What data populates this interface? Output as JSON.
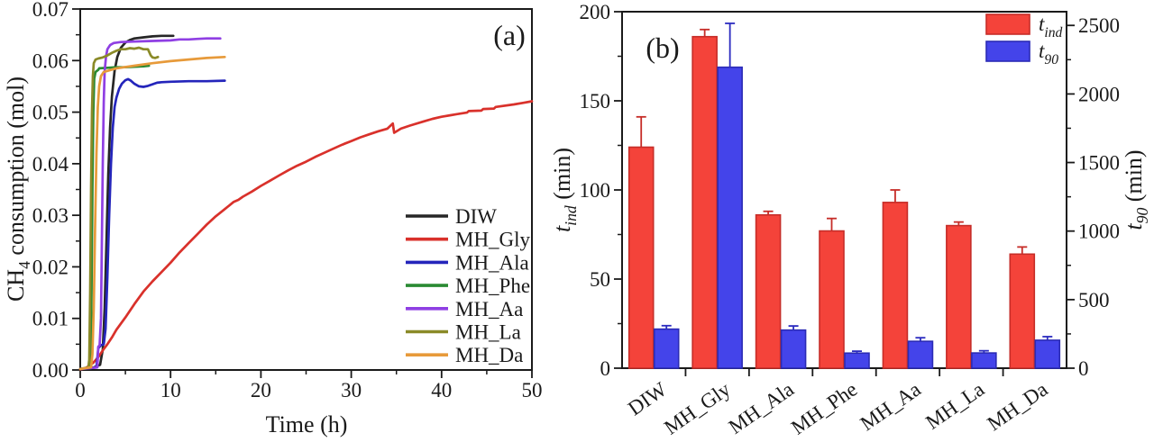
{
  "figure": {
    "background": "#ffffff"
  },
  "chart_data": [
    {
      "panel": "a",
      "type": "line",
      "corner_label": "(a)",
      "xlabel": "Time (h)",
      "ylabel_segs": [
        {
          "t": "CH"
        },
        {
          "t": "4",
          "sub": true
        },
        {
          "t": " consumption (mol)"
        }
      ],
      "xlim": [
        0,
        50
      ],
      "ylim": [
        0,
        0.07
      ],
      "xticks": [
        0,
        10,
        20,
        30,
        40,
        50
      ],
      "xminor": [
        5,
        15,
        25,
        35,
        45
      ],
      "ytick_labels": [
        "0.00",
        "0.01",
        "0.02",
        "0.03",
        "0.04",
        "0.05",
        "0.06",
        "0.07"
      ],
      "yticks": [
        0,
        0.01,
        0.02,
        0.03,
        0.04,
        0.05,
        0.06,
        0.07
      ],
      "yminor": [
        0.005,
        0.015,
        0.025,
        0.035,
        0.045,
        0.055,
        0.065
      ],
      "series": [
        {
          "name": "DIW",
          "color": "#262626",
          "points": [
            [
              0,
              0.0002
            ],
            [
              1.5,
              0.0005
            ],
            [
              2.2,
              0.001
            ],
            [
              2.5,
              0.004
            ],
            [
              2.7,
              0.012
            ],
            [
              2.9,
              0.025
            ],
            [
              3.1,
              0.038
            ],
            [
              3.3,
              0.047
            ],
            [
              3.5,
              0.053
            ],
            [
              3.8,
              0.058
            ],
            [
              4.1,
              0.0607
            ],
            [
              4.5,
              0.0625
            ],
            [
              5,
              0.0635
            ],
            [
              5.5,
              0.064
            ],
            [
              6,
              0.0643
            ],
            [
              7,
              0.0645
            ],
            [
              8,
              0.0647
            ],
            [
              9,
              0.0648
            ],
            [
              10.3,
              0.0648
            ]
          ]
        },
        {
          "name": "MH_Gly",
          "color": "#d9312b",
          "points": [
            [
              0,
              0.0001
            ],
            [
              0.5,
              0.0003
            ],
            [
              1,
              0.0008
            ],
            [
              1.5,
              0.0015
            ],
            [
              2,
              0.0025
            ],
            [
              2.5,
              0.0038
            ],
            [
              3,
              0.005
            ],
            [
              3.5,
              0.0063
            ],
            [
              4,
              0.0078
            ],
            [
              4.5,
              0.009
            ],
            [
              5,
              0.0102
            ],
            [
              6,
              0.0128
            ],
            [
              7,
              0.0152
            ],
            [
              8,
              0.0172
            ],
            [
              9,
              0.019
            ],
            [
              10,
              0.0208
            ],
            [
              11,
              0.0228
            ],
            [
              12,
              0.0246
            ],
            [
              13,
              0.0264
            ],
            [
              14,
              0.0282
            ],
            [
              15,
              0.0298
            ],
            [
              16,
              0.0312
            ],
            [
              17,
              0.0326
            ],
            [
              17.5,
              0.033
            ],
            [
              18,
              0.0336
            ],
            [
              19,
              0.0346
            ],
            [
              20,
              0.0357
            ],
            [
              21,
              0.0367
            ],
            [
              22,
              0.0377
            ],
            [
              23,
              0.0387
            ],
            [
              24,
              0.0396
            ],
            [
              25,
              0.0404
            ],
            [
              26,
              0.0413
            ],
            [
              27,
              0.0421
            ],
            [
              28,
              0.0429
            ],
            [
              29,
              0.0437
            ],
            [
              30,
              0.0444
            ],
            [
              31,
              0.0451
            ],
            [
              32,
              0.0457
            ],
            [
              33,
              0.0463
            ],
            [
              34,
              0.0468
            ],
            [
              34.6,
              0.0478
            ],
            [
              34.75,
              0.046
            ],
            [
              35.5,
              0.0468
            ],
            [
              36.5,
              0.0474
            ],
            [
              38,
              0.0482
            ],
            [
              39,
              0.0487
            ],
            [
              40,
              0.0491
            ],
            [
              41,
              0.0494
            ],
            [
              42,
              0.0497
            ],
            [
              42.8,
              0.0499
            ],
            [
              43,
              0.0502
            ],
            [
              44.4,
              0.0503
            ],
            [
              44.6,
              0.0506
            ],
            [
              45.8,
              0.0507
            ],
            [
              46,
              0.051
            ],
            [
              48,
              0.0515
            ],
            [
              49,
              0.0518
            ],
            [
              50,
              0.0521
            ]
          ]
        },
        {
          "name": "MH_Ala",
          "color": "#2425bb",
          "points": [
            [
              0,
              0.0002
            ],
            [
              1.8,
              0.0005
            ],
            [
              2,
              0.0042
            ],
            [
              2.3,
              0.0048
            ],
            [
              2.6,
              0.005
            ],
            [
              2.8,
              0.008
            ],
            [
              3,
              0.018
            ],
            [
              3.2,
              0.03
            ],
            [
              3.4,
              0.04
            ],
            [
              3.6,
              0.047
            ],
            [
              3.8,
              0.051
            ],
            [
              4,
              0.0528
            ],
            [
              4.3,
              0.0545
            ],
            [
              4.6,
              0.0555
            ],
            [
              5,
              0.0562
            ],
            [
              5.3,
              0.0564
            ],
            [
              5.6,
              0.0561
            ],
            [
              6,
              0.0555
            ],
            [
              6.5,
              0.055
            ],
            [
              7,
              0.0549
            ],
            [
              7.5,
              0.0551
            ],
            [
              8,
              0.0554
            ],
            [
              8.5,
              0.0557
            ],
            [
              9,
              0.0558
            ],
            [
              10,
              0.0559
            ],
            [
              12,
              0.056
            ],
            [
              14,
              0.056
            ],
            [
              16,
              0.0561
            ]
          ]
        },
        {
          "name": "MH_Phe",
          "color": "#2a8a33",
          "points": [
            [
              0,
              0.0002
            ],
            [
              1,
              0.0005
            ],
            [
              1.15,
              0.002
            ],
            [
              1.25,
              0.015
            ],
            [
              1.35,
              0.035
            ],
            [
              1.45,
              0.05
            ],
            [
              1.55,
              0.0565
            ],
            [
              1.7,
              0.0578
            ],
            [
              2,
              0.0582
            ],
            [
              2.1,
              0.0585
            ],
            [
              3,
              0.0586
            ],
            [
              4,
              0.0587
            ],
            [
              5,
              0.0587
            ],
            [
              6,
              0.0588
            ],
            [
              7,
              0.0589
            ],
            [
              7.6,
              0.059
            ]
          ]
        },
        {
          "name": "MH_Aa",
          "color": "#8f3fe3",
          "points": [
            [
              0,
              0.0002
            ],
            [
              1.9,
              0.0005
            ],
            [
              2,
              0.0045
            ],
            [
              2.15,
              0.0048
            ],
            [
              2.3,
              0.01
            ],
            [
              2.4,
              0.025
            ],
            [
              2.5,
              0.04
            ],
            [
              2.6,
              0.052
            ],
            [
              2.7,
              0.058
            ],
            [
              2.85,
              0.0608
            ],
            [
              3,
              0.0622
            ],
            [
              3.3,
              0.063
            ],
            [
              3.7,
              0.0634
            ],
            [
              4.5,
              0.0636
            ],
            [
              6,
              0.0637
            ],
            [
              8,
              0.0638
            ],
            [
              10,
              0.0639
            ],
            [
              11,
              0.0641
            ],
            [
              12,
              0.0641
            ],
            [
              13,
              0.0642
            ],
            [
              14,
              0.0643
            ],
            [
              15.5,
              0.0643
            ]
          ]
        },
        {
          "name": "MH_La",
          "color": "#8a8a28",
          "points": [
            [
              0,
              0.0002
            ],
            [
              0.9,
              0.0005
            ],
            [
              1,
              0.002
            ],
            [
              1.1,
              0.015
            ],
            [
              1.2,
              0.035
            ],
            [
              1.3,
              0.05
            ],
            [
              1.4,
              0.057
            ],
            [
              1.5,
              0.0595
            ],
            [
              1.7,
              0.0602
            ],
            [
              2,
              0.0604
            ],
            [
              2.5,
              0.0606
            ],
            [
              3,
              0.061
            ],
            [
              3.5,
              0.0615
            ],
            [
              4,
              0.0619
            ],
            [
              4.5,
              0.0622
            ],
            [
              5,
              0.0622
            ],
            [
              5.5,
              0.0624
            ],
            [
              6,
              0.0623
            ],
            [
              6.5,
              0.0625
            ],
            [
              7,
              0.0622
            ],
            [
              7.5,
              0.0622
            ],
            [
              7.8,
              0.061
            ],
            [
              8,
              0.0606
            ],
            [
              8.3,
              0.0605
            ],
            [
              8.6,
              0.0607
            ]
          ]
        },
        {
          "name": "MH_Da",
          "color": "#e79a3a",
          "points": [
            [
              0,
              0.0002
            ],
            [
              1.2,
              0.0005
            ],
            [
              1.35,
              0.003
            ],
            [
              1.5,
              0.012
            ],
            [
              1.65,
              0.028
            ],
            [
              1.8,
              0.042
            ],
            [
              1.95,
              0.051
            ],
            [
              2.1,
              0.055
            ],
            [
              2.3,
              0.057
            ],
            [
              2.6,
              0.0578
            ],
            [
              4,
              0.0585
            ],
            [
              6,
              0.059
            ],
            [
              8,
              0.0595
            ],
            [
              10,
              0.0599
            ],
            [
              12,
              0.0602
            ],
            [
              14,
              0.0605
            ],
            [
              16,
              0.0607
            ]
          ]
        }
      ],
      "legend": [
        "DIW",
        "MH_Gly",
        "MH_Ala",
        "MH_Phe",
        "MH_Aa",
        "MH_La",
        "MH_Da"
      ]
    },
    {
      "panel": "b",
      "type": "bar",
      "corner_label": "(b)",
      "categories": [
        "DIW",
        "MH_Gly",
        "MH_Ala",
        "MH_Phe",
        "MH_Aa",
        "MH_La",
        "MH_Da"
      ],
      "left_axis": {
        "segs": [
          {
            "t": "t",
            "it": true
          },
          {
            "t": "ind",
            "sub": true,
            "it": true
          },
          {
            "t": " (min)"
          }
        ],
        "lim": [
          0,
          200
        ],
        "ticks": [
          0,
          50,
          100,
          150,
          200
        ],
        "minor_step": 25
      },
      "right_axis": {
        "segs": [
          {
            "t": "t",
            "it": true
          },
          {
            "t": "90",
            "sub": true,
            "it": true
          },
          {
            "t": " (min)"
          }
        ],
        "lim": [
          0,
          2600
        ],
        "ticks": [
          0,
          500,
          1000,
          1500,
          2000,
          2500
        ],
        "minor_step": 250
      },
      "series": [
        {
          "name": "t_ind",
          "legend_segs": [
            {
              "t": "t",
              "it": true
            },
            {
              "t": "ind",
              "sub": true,
              "it": true
            }
          ],
          "axis": "left",
          "color": "#f4433a",
          "edge": "#c62d28",
          "err": "#c62d28",
          "values": [
            124,
            186,
            86,
            77,
            93,
            80,
            64
          ],
          "errors": [
            17,
            4,
            2,
            7,
            7,
            2,
            4
          ]
        },
        {
          "name": "t_90",
          "legend_segs": [
            {
              "t": "t",
              "it": true
            },
            {
              "t": "90",
              "sub": true,
              "it": true
            }
          ],
          "axis": "right",
          "color": "#4444ea",
          "edge": "#2b2bb5",
          "err": "#2c2cc0",
          "values": [
            285,
            2195,
            278,
            110,
            196,
            111,
            204
          ],
          "errors": [
            25,
            320,
            30,
            14,
            26,
            16,
            26
          ]
        }
      ]
    }
  ]
}
